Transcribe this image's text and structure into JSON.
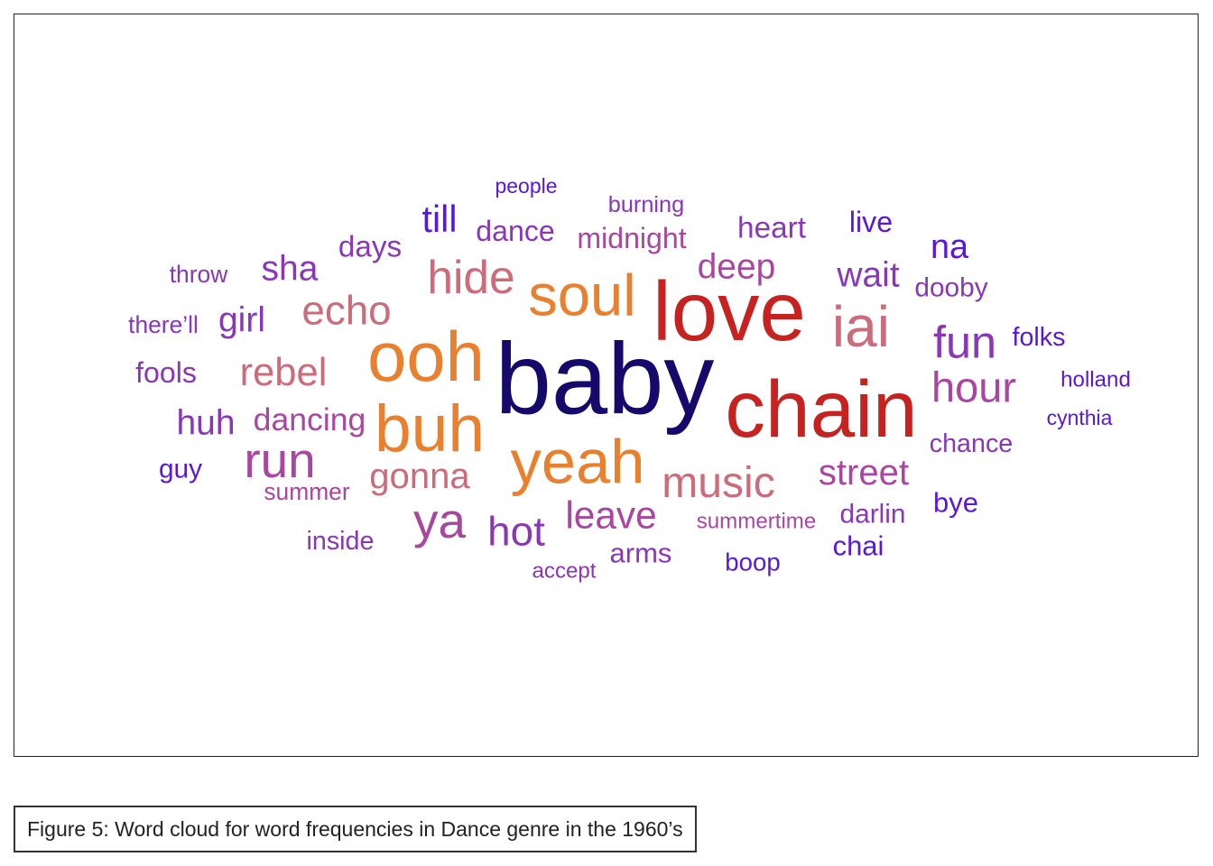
{
  "caption": "Figure 5: Word cloud for word frequencies in Dance genre in the 1960’s",
  "chart_data": {
    "type": "wordcloud",
    "palette": {
      "navy": "#150a6b",
      "red": "#c62320",
      "orange": "#ea7f2e",
      "rose": "#cc6b7a",
      "magenta": "#a846a0",
      "purple": "#8a36b8",
      "violet": "#5a17dc"
    },
    "words": [
      {
        "text": "baby",
        "weight": 100,
        "color": "#150a6b"
      },
      {
        "text": "love",
        "weight": 83,
        "color": "#c62320"
      },
      {
        "text": "chain",
        "weight": 80,
        "color": "#c62320"
      },
      {
        "text": "ooh",
        "weight": 70,
        "color": "#ea7f2e"
      },
      {
        "text": "buh",
        "weight": 66,
        "color": "#ea7f2e"
      },
      {
        "text": "yeah",
        "weight": 62,
        "color": "#ea7f2e"
      },
      {
        "text": "soul",
        "weight": 59,
        "color": "#ea7f2e"
      },
      {
        "text": "iai",
        "weight": 58,
        "color": "#cc6b7a"
      },
      {
        "text": "ya",
        "weight": 50,
        "color": "#a846a0"
      },
      {
        "text": "run",
        "weight": 50,
        "color": "#a846a0"
      },
      {
        "text": "hide",
        "weight": 47,
        "color": "#cc6b7a"
      },
      {
        "text": "fun",
        "weight": 46,
        "color": "#8a36b8"
      },
      {
        "text": "music",
        "weight": 44,
        "color": "#cc6b7a"
      },
      {
        "text": "hour",
        "weight": 43,
        "color": "#a846a0"
      },
      {
        "text": "echo",
        "weight": 42,
        "color": "#cc6b7a"
      },
      {
        "text": "hot",
        "weight": 42,
        "color": "#8a36b8"
      },
      {
        "text": "rebel",
        "weight": 40,
        "color": "#cc6b7a"
      },
      {
        "text": "leave",
        "weight": 39,
        "color": "#a846a0"
      },
      {
        "text": "till",
        "weight": 38,
        "color": "#5a17dc"
      },
      {
        "text": "gonna",
        "weight": 37,
        "color": "#cc6b7a"
      },
      {
        "text": "street",
        "weight": 37,
        "color": "#a846a0"
      },
      {
        "text": "deep",
        "weight": 36,
        "color": "#a846a0"
      },
      {
        "text": "wait",
        "weight": 36,
        "color": "#8a36b8"
      },
      {
        "text": "girl",
        "weight": 36,
        "color": "#8a36b8"
      },
      {
        "text": "huh",
        "weight": 36,
        "color": "#8a36b8"
      },
      {
        "text": "sha",
        "weight": 36,
        "color": "#8a36b8"
      },
      {
        "text": "na",
        "weight": 35,
        "color": "#5a17dc"
      },
      {
        "text": "dancing",
        "weight": 33,
        "color": "#a846a0"
      },
      {
        "text": "days",
        "weight": 31,
        "color": "#8a36b8"
      },
      {
        "text": "heart",
        "weight": 31,
        "color": "#8a36b8"
      },
      {
        "text": "live",
        "weight": 30,
        "color": "#5a17dc"
      },
      {
        "text": "fools",
        "weight": 30,
        "color": "#8a36b8"
      },
      {
        "text": "dance",
        "weight": 30,
        "color": "#8a36b8"
      },
      {
        "text": "midnight",
        "weight": 30,
        "color": "#a846a0"
      },
      {
        "text": "arms",
        "weight": 29,
        "color": "#8a36b8"
      },
      {
        "text": "chai",
        "weight": 29,
        "color": "#5a17dc"
      },
      {
        "text": "bye",
        "weight": 29,
        "color": "#5a17dc"
      },
      {
        "text": "guy",
        "weight": 28,
        "color": "#5a17dc"
      },
      {
        "text": "dooby",
        "weight": 28,
        "color": "#8a36b8"
      },
      {
        "text": "darlin",
        "weight": 28,
        "color": "#8a36b8"
      },
      {
        "text": "inside",
        "weight": 27,
        "color": "#8a36b8"
      },
      {
        "text": "chance",
        "weight": 27,
        "color": "#8a36b8"
      },
      {
        "text": "folks",
        "weight": 27,
        "color": "#5a17dc"
      },
      {
        "text": "boop",
        "weight": 26,
        "color": "#5a17dc"
      },
      {
        "text": "throw",
        "weight": 25,
        "color": "#8a36b8"
      },
      {
        "text": "there’ll",
        "weight": 25,
        "color": "#8a36b8"
      },
      {
        "text": "summer",
        "weight": 25,
        "color": "#a846a0"
      },
      {
        "text": "burning",
        "weight": 24,
        "color": "#8a36b8"
      },
      {
        "text": "accept",
        "weight": 23,
        "color": "#8a36b8"
      },
      {
        "text": "summertime",
        "weight": 23,
        "color": "#a846a0"
      },
      {
        "text": "holland",
        "weight": 23,
        "color": "#5a17dc"
      },
      {
        "text": "people",
        "weight": 22,
        "color": "#5a17dc"
      },
      {
        "text": "cynthia",
        "weight": 22,
        "color": "#5a17dc"
      }
    ]
  }
}
